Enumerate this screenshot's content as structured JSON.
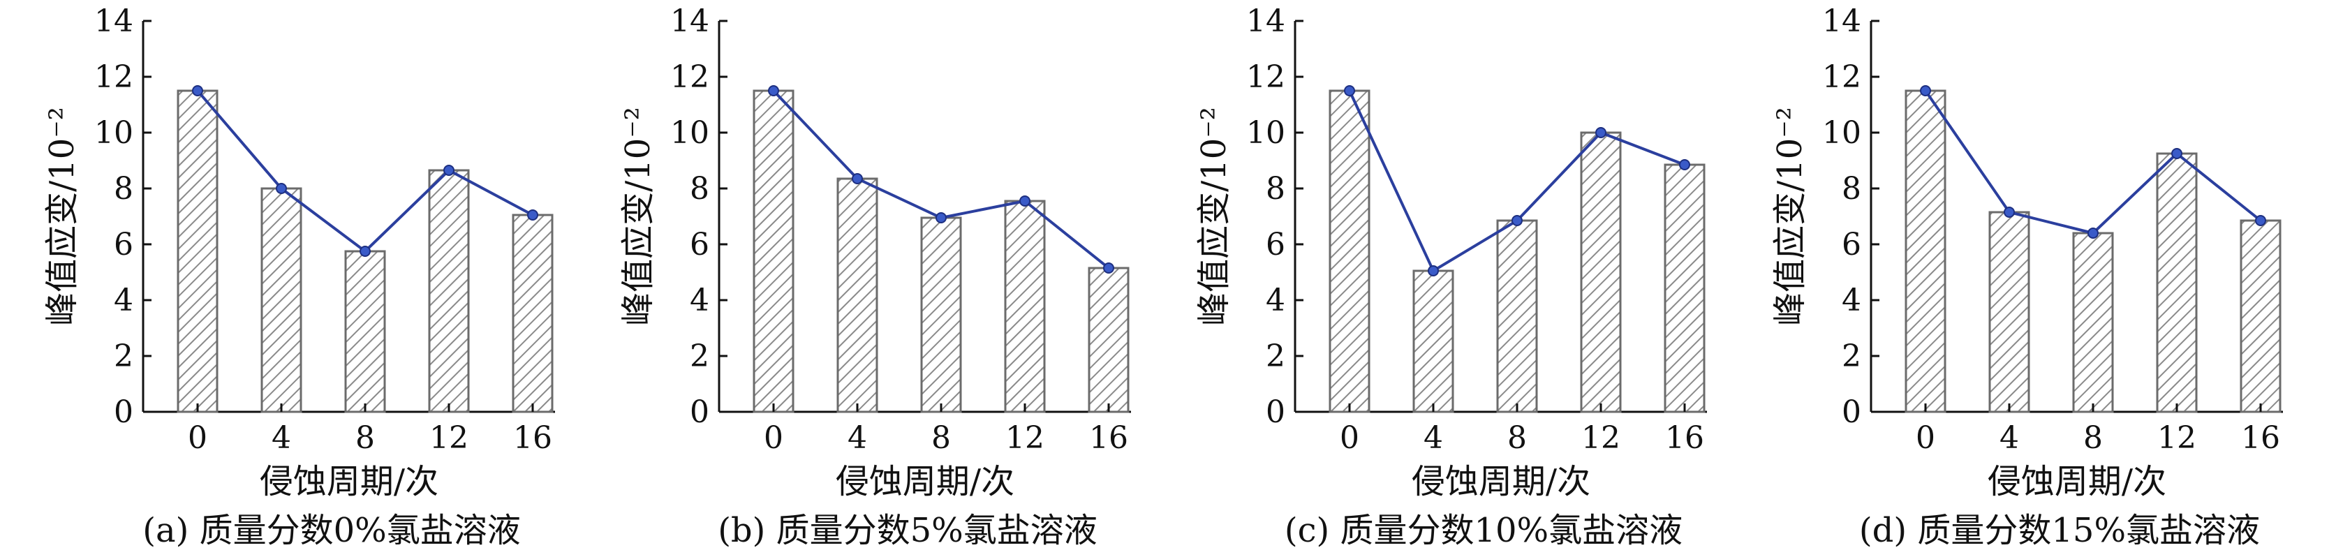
{
  "chart_data": [
    {
      "type": "bar",
      "caption": "(a) 质量分数0%氯盐溶液",
      "xlabel": "侵蚀周期/次",
      "ylabel": "峰值应变/10⁻²",
      "categories": [
        "0",
        "4",
        "8",
        "12",
        "16"
      ],
      "values": [
        11.5,
        8.0,
        5.75,
        8.65,
        7.05
      ],
      "line_values": [
        11.5,
        8.0,
        5.75,
        8.65,
        7.05
      ],
      "ylim": [
        0,
        14
      ],
      "yticks": [
        "0",
        "2",
        "4",
        "6",
        "8",
        "10",
        "12",
        "14"
      ]
    },
    {
      "type": "bar",
      "caption": "(b) 质量分数5%氯盐溶液",
      "xlabel": "侵蚀周期/次",
      "ylabel": "峰值应变/10⁻²",
      "categories": [
        "0",
        "4",
        "8",
        "12",
        "16"
      ],
      "values": [
        11.5,
        8.35,
        6.95,
        7.55,
        5.15
      ],
      "line_values": [
        11.5,
        8.35,
        6.95,
        7.55,
        5.15
      ],
      "ylim": [
        0,
        14
      ],
      "yticks": [
        "0",
        "2",
        "4",
        "6",
        "8",
        "10",
        "12",
        "14"
      ]
    },
    {
      "type": "bar",
      "caption": "(c) 质量分数10%氯盐溶液",
      "xlabel": "侵蚀周期/次",
      "ylabel": "峰值应变/10⁻²",
      "categories": [
        "0",
        "4",
        "8",
        "12",
        "16"
      ],
      "values": [
        11.5,
        5.05,
        6.85,
        10.0,
        8.85
      ],
      "line_values": [
        11.5,
        5.05,
        6.85,
        10.0,
        8.85
      ],
      "ylim": [
        0,
        14
      ],
      "yticks": [
        "0",
        "2",
        "4",
        "6",
        "8",
        "10",
        "12",
        "14"
      ]
    },
    {
      "type": "bar",
      "caption": "(d) 质量分数15%氯盐溶液",
      "xlabel": "侵蚀周期/次",
      "ylabel": "峰值应变/10⁻²",
      "categories": [
        "0",
        "4",
        "8",
        "12",
        "16"
      ],
      "values": [
        11.5,
        7.15,
        6.4,
        9.25,
        6.85
      ],
      "line_values": [
        11.5,
        7.15,
        6.4,
        9.25,
        6.85
      ],
      "ylim": [
        0,
        14
      ],
      "yticks": [
        "0",
        "2",
        "4",
        "6",
        "8",
        "10",
        "12",
        "14"
      ]
    }
  ],
  "colors": {
    "line": "#2b3f9e",
    "marker": "#3a5bc8",
    "bar_stroke": "#6b6b6b",
    "hatch": "#8a8a8a"
  }
}
